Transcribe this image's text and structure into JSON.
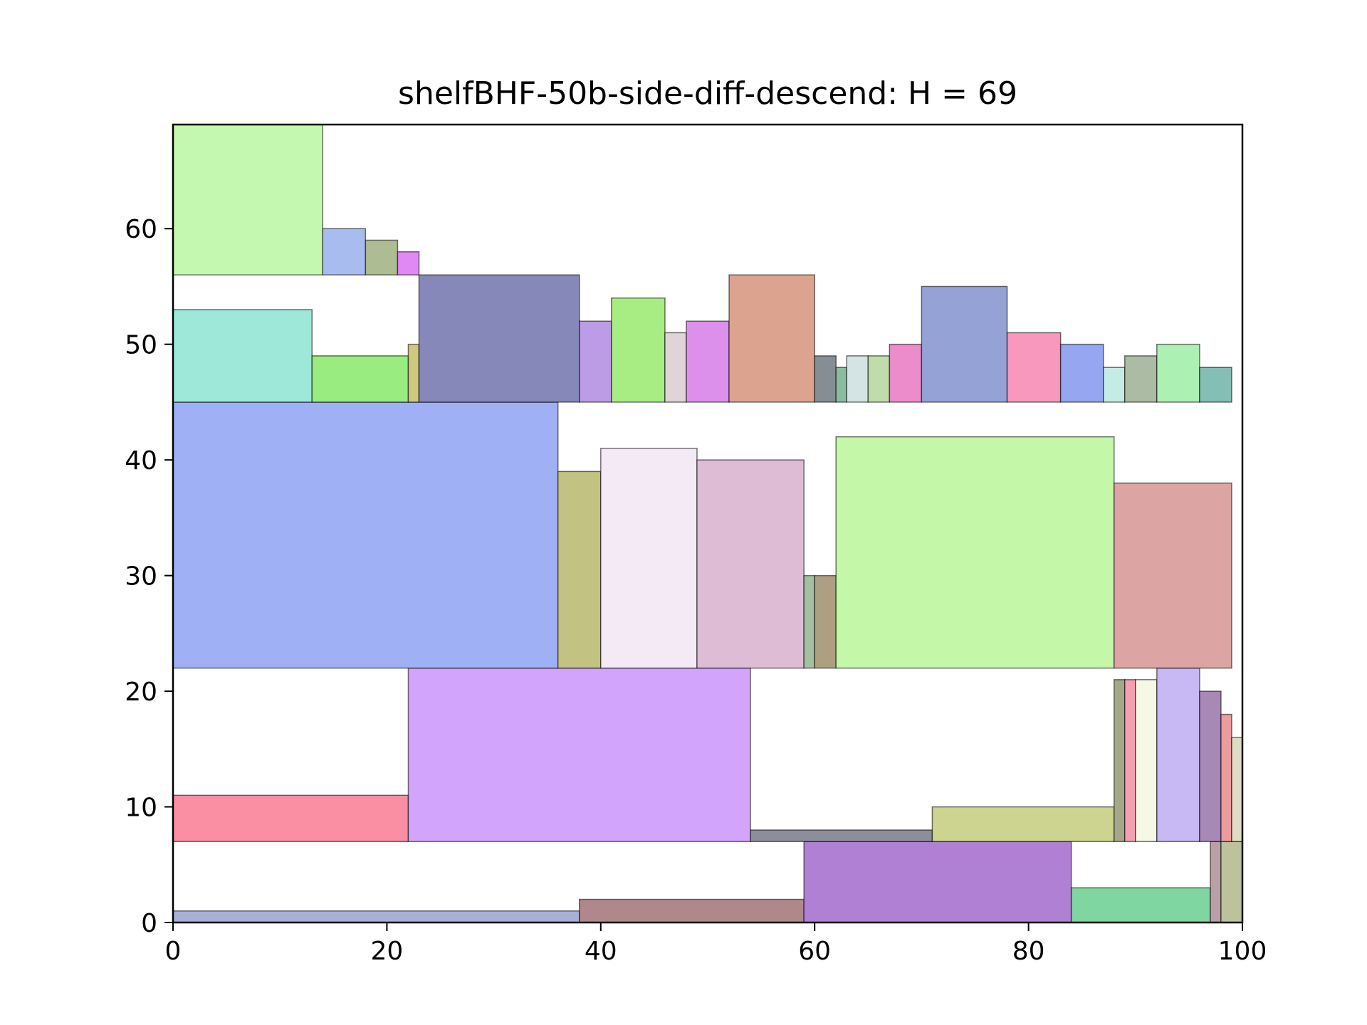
{
  "chart_data": {
    "type": "rectangle-packing",
    "title": "shelfBHF-50b-side-diff-descend: H = 69",
    "xlim": [
      0,
      100
    ],
    "ylim": [
      0,
      69
    ],
    "x_ticks": [
      0,
      20,
      40,
      60,
      80,
      100
    ],
    "y_ticks": [
      0,
      10,
      20,
      30,
      40,
      50,
      60
    ],
    "grid": false,
    "rectangles": [
      {
        "x": 0,
        "y": 0,
        "w": 38,
        "h": 1,
        "color": "#a8b0d8"
      },
      {
        "x": 38,
        "y": 0,
        "w": 21,
        "h": 2,
        "color": "#b0888c"
      },
      {
        "x": 59,
        "y": 0,
        "w": 25,
        "h": 7,
        "color": "#b080d4"
      },
      {
        "x": 84,
        "y": 0,
        "w": 13,
        "h": 3,
        "color": "#80d6a0"
      },
      {
        "x": 97,
        "y": 0,
        "w": 1,
        "h": 7,
        "color": "#b8a0a4"
      },
      {
        "x": 98,
        "y": 0,
        "w": 2,
        "h": 7,
        "color": "#bcc29c"
      },
      {
        "x": 0,
        "y": 7,
        "w": 22,
        "h": 4,
        "color": "#fa8ea2"
      },
      {
        "x": 22,
        "y": 7,
        "w": 32,
        "h": 15,
        "color": "#d2a4fc"
      },
      {
        "x": 54,
        "y": 7,
        "w": 17,
        "h": 1,
        "color": "#8c8e9c"
      },
      {
        "x": 71,
        "y": 7,
        "w": 17,
        "h": 3,
        "color": "#ccd490"
      },
      {
        "x": 88,
        "y": 7,
        "w": 1,
        "h": 14,
        "color": "#a4a888"
      },
      {
        "x": 89,
        "y": 7,
        "w": 1,
        "h": 14,
        "color": "#f4a0b0"
      },
      {
        "x": 90,
        "y": 7,
        "w": 2,
        "h": 14,
        "color": "#f6f8e6"
      },
      {
        "x": 92,
        "y": 7,
        "w": 4,
        "h": 15,
        "color": "#c8b8f4"
      },
      {
        "x": 96,
        "y": 7,
        "w": 2,
        "h": 13,
        "color": "#a888b4"
      },
      {
        "x": 98,
        "y": 7,
        "w": 1,
        "h": 11,
        "color": "#ec9c9c"
      },
      {
        "x": 99,
        "y": 7,
        "w": 1,
        "h": 9,
        "color": "#e0dcc4"
      },
      {
        "x": 0,
        "y": 22,
        "w": 36,
        "h": 23,
        "color": "#a0b0f4"
      },
      {
        "x": 36,
        "y": 22,
        "w": 4,
        "h": 17,
        "color": "#c2c282"
      },
      {
        "x": 40,
        "y": 22,
        "w": 9,
        "h": 19,
        "color": "#f4eaf6"
      },
      {
        "x": 49,
        "y": 22,
        "w": 10,
        "h": 18,
        "color": "#debcd6"
      },
      {
        "x": 59,
        "y": 22,
        "w": 1,
        "h": 8,
        "color": "#a4c0a0"
      },
      {
        "x": 60,
        "y": 22,
        "w": 2,
        "h": 8,
        "color": "#aca080"
      },
      {
        "x": 62,
        "y": 22,
        "w": 26,
        "h": 20,
        "color": "#c4f8a8"
      },
      {
        "x": 88,
        "y": 22,
        "w": 11,
        "h": 16,
        "color": "#dca4a2"
      },
      {
        "x": 0,
        "y": 45,
        "w": 13,
        "h": 8,
        "color": "#9ee8da"
      },
      {
        "x": 13,
        "y": 45,
        "w": 9,
        "h": 4,
        "color": "#98ec80"
      },
      {
        "x": 22,
        "y": 45,
        "w": 1,
        "h": 5,
        "color": "#d0c880"
      },
      {
        "x": 23,
        "y": 45,
        "w": 15,
        "h": 11,
        "color": "#8688ba"
      },
      {
        "x": 38,
        "y": 45,
        "w": 3,
        "h": 7,
        "color": "#bc9ce4"
      },
      {
        "x": 41,
        "y": 45,
        "w": 5,
        "h": 9,
        "color": "#a8ec84"
      },
      {
        "x": 46,
        "y": 45,
        "w": 2,
        "h": 6,
        "color": "#e0d4d8"
      },
      {
        "x": 48,
        "y": 45,
        "w": 4,
        "h": 7,
        "color": "#dc90ec"
      },
      {
        "x": 52,
        "y": 45,
        "w": 8,
        "h": 11,
        "color": "#dca48e"
      },
      {
        "x": 60,
        "y": 45,
        "w": 2,
        "h": 4,
        "color": "#848e94"
      },
      {
        "x": 62,
        "y": 45,
        "w": 1,
        "h": 3,
        "color": "#8cbca0"
      },
      {
        "x": 63,
        "y": 45,
        "w": 2,
        "h": 4,
        "color": "#d4e4e4"
      },
      {
        "x": 65,
        "y": 45,
        "w": 2,
        "h": 4,
        "color": "#c0dcaa"
      },
      {
        "x": 67,
        "y": 45,
        "w": 3,
        "h": 5,
        "color": "#ec8cca"
      },
      {
        "x": 70,
        "y": 45,
        "w": 8,
        "h": 10,
        "color": "#94a2d6"
      },
      {
        "x": 78,
        "y": 45,
        "w": 5,
        "h": 6,
        "color": "#f898bc"
      },
      {
        "x": 83,
        "y": 45,
        "w": 4,
        "h": 5,
        "color": "#96a6f0"
      },
      {
        "x": 87,
        "y": 45,
        "w": 2,
        "h": 3,
        "color": "#c4ece4"
      },
      {
        "x": 89,
        "y": 45,
        "w": 3,
        "h": 4,
        "color": "#acbca4"
      },
      {
        "x": 92,
        "y": 45,
        "w": 4,
        "h": 5,
        "color": "#acf0b4"
      },
      {
        "x": 96,
        "y": 45,
        "w": 3,
        "h": 3,
        "color": "#84beb4"
      },
      {
        "x": 0,
        "y": 56,
        "w": 14,
        "h": 13,
        "color": "#c4f8b0"
      },
      {
        "x": 14,
        "y": 56,
        "w": 4,
        "h": 4,
        "color": "#a8bcf0"
      },
      {
        "x": 18,
        "y": 56,
        "w": 3,
        "h": 3,
        "color": "#aebc94"
      },
      {
        "x": 21,
        "y": 56,
        "w": 2,
        "h": 2,
        "color": "#e088f4"
      }
    ]
  }
}
